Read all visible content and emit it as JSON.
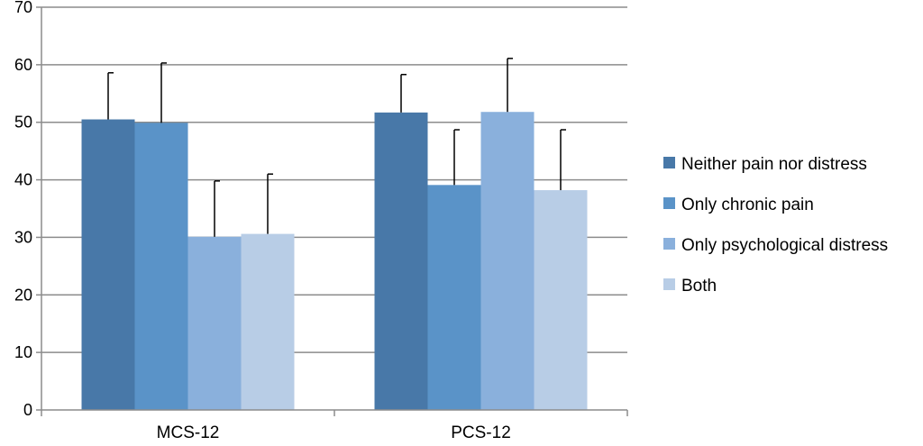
{
  "chart_data": {
    "type": "bar",
    "categories": [
      "MCS-12",
      "PCS-12"
    ],
    "series": [
      {
        "name": "Neither pain nor distress",
        "color": "#4878a8",
        "values": [
          50.5,
          51.7
        ],
        "error": [
          8.1,
          6.6
        ]
      },
      {
        "name": "Only chronic pain",
        "color": "#5a93c8",
        "values": [
          49.9,
          39.1
        ],
        "error": [
          10.4,
          9.6
        ]
      },
      {
        "name": "Only psychological distress",
        "color": "#8ab0dc",
        "values": [
          30.1,
          51.8
        ],
        "error": [
          9.7,
          9.3
        ]
      },
      {
        "name": "Both",
        "color": "#b8cde6",
        "values": [
          30.6,
          38.2
        ],
        "error": [
          10.4,
          10.5
        ]
      }
    ],
    "yticks": [
      0,
      10,
      20,
      30,
      40,
      50,
      60,
      70
    ],
    "ylim": [
      0,
      70
    ],
    "grid": true,
    "legend_position": "right",
    "title": "",
    "xlabel": "",
    "ylabel": ""
  }
}
